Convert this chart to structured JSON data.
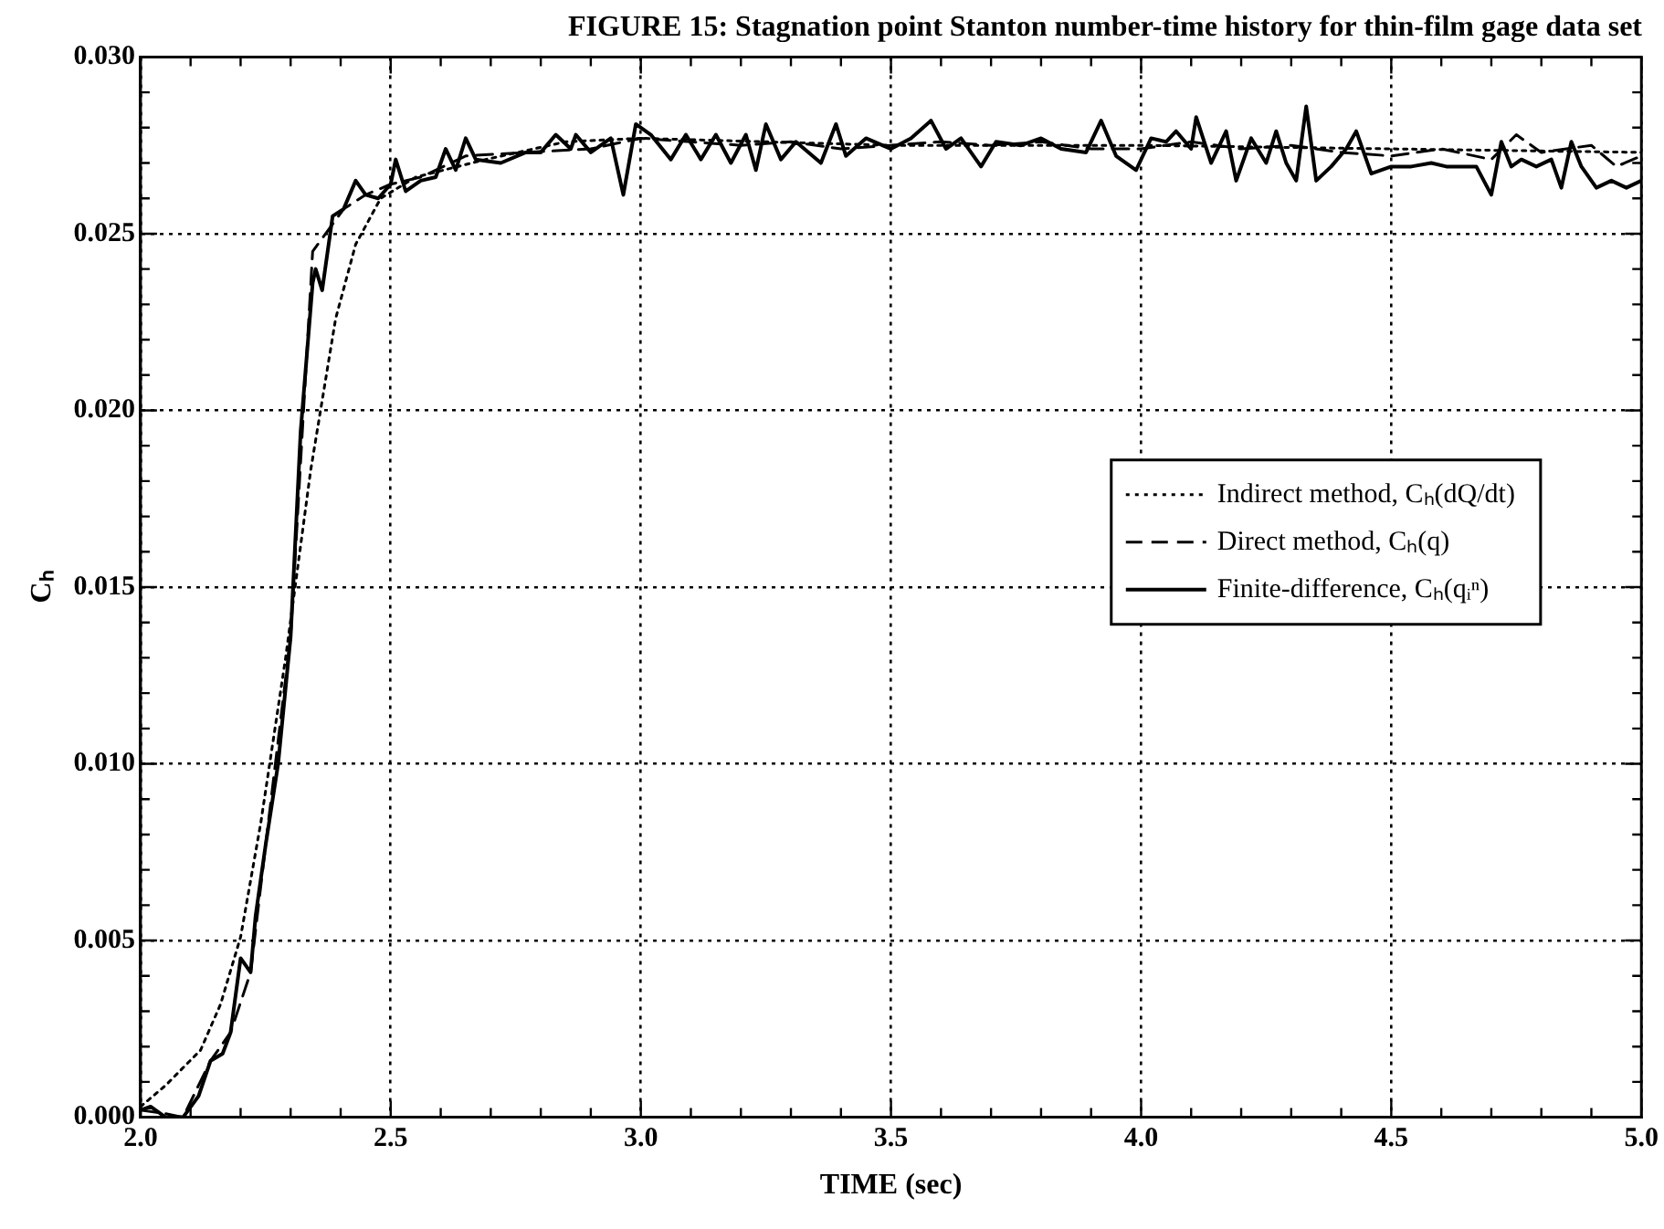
{
  "chart_data": {
    "type": "line",
    "title": "FIGURE 15: Stagnation point Stanton number-time history for thin-film gage data set",
    "xlabel": "TIME (sec)",
    "ylabel": "Cₕ",
    "xlim": [
      2.0,
      5.0
    ],
    "xticks": [
      {
        "value": 2.0,
        "label": "2.0"
      },
      {
        "value": 2.1,
        "label": null
      },
      {
        "value": 2.2,
        "label": null
      },
      {
        "value": 2.3,
        "label": null
      },
      {
        "value": 2.4,
        "label": null
      },
      {
        "value": 2.5,
        "label": "2.5"
      },
      {
        "value": 2.6,
        "label": null
      },
      {
        "value": 2.7,
        "label": null
      },
      {
        "value": 2.8,
        "label": null
      },
      {
        "value": 2.9,
        "label": null
      },
      {
        "value": 3.0,
        "label": "3.0"
      },
      {
        "value": 3.1,
        "label": null
      },
      {
        "value": 3.2,
        "label": null
      },
      {
        "value": 3.3,
        "label": null
      },
      {
        "value": 3.4,
        "label": null
      },
      {
        "value": 3.5,
        "label": "3.5"
      },
      {
        "value": 3.6,
        "label": null
      },
      {
        "value": 3.7,
        "label": null
      },
      {
        "value": 3.8,
        "label": null
      },
      {
        "value": 3.9,
        "label": null
      },
      {
        "value": 4.0,
        "label": "4.0"
      },
      {
        "value": 4.1,
        "label": null
      },
      {
        "value": 4.2,
        "label": null
      },
      {
        "value": 4.3,
        "label": null
      },
      {
        "value": 4.4,
        "label": null
      },
      {
        "value": 4.5,
        "label": "4.5"
      },
      {
        "value": 4.6,
        "label": null
      },
      {
        "value": 4.7,
        "label": null
      },
      {
        "value": 4.8,
        "label": null
      },
      {
        "value": 4.9,
        "label": null
      },
      {
        "value": 5.0,
        "label": "5.0"
      }
    ],
    "ylim": [
      0,
      0.03
    ],
    "yticks": [
      {
        "value": 0,
        "label": "0.000"
      },
      {
        "value": 0.001,
        "label": null
      },
      {
        "value": 0.002,
        "label": null
      },
      {
        "value": 0.003,
        "label": null
      },
      {
        "value": 0.004,
        "label": null
      },
      {
        "value": 0.005,
        "label": "0.005"
      },
      {
        "value": 0.006,
        "label": null
      },
      {
        "value": 0.007,
        "label": null
      },
      {
        "value": 0.008,
        "label": null
      },
      {
        "value": 0.009,
        "label": null
      },
      {
        "value": 0.01,
        "label": "0.010"
      },
      {
        "value": 0.011,
        "label": null
      },
      {
        "value": 0.012,
        "label": null
      },
      {
        "value": 0.013,
        "label": null
      },
      {
        "value": 0.014,
        "label": null
      },
      {
        "value": 0.015,
        "label": "0.015"
      },
      {
        "value": 0.016,
        "label": null
      },
      {
        "value": 0.017,
        "label": null
      },
      {
        "value": 0.018,
        "label": null
      },
      {
        "value": 0.019,
        "label": null
      },
      {
        "value": 0.02,
        "label": "0.020"
      },
      {
        "value": 0.021,
        "label": null
      },
      {
        "value": 0.022,
        "label": null
      },
      {
        "value": 0.023,
        "label": null
      },
      {
        "value": 0.024,
        "label": null
      },
      {
        "value": 0.025,
        "label": "0.025"
      },
      {
        "value": 0.026,
        "label": null
      },
      {
        "value": 0.027,
        "label": null
      },
      {
        "value": 0.028,
        "label": null
      },
      {
        "value": 0.029,
        "label": null
      },
      {
        "value": 0.03,
        "label": "0.030"
      }
    ],
    "grid": true,
    "legend": "right",
    "marker": "none",
    "series": [
      {
        "name": "Indirect method, Cₕ(dQ/dt)",
        "color": "#000000",
        "line_style": "dotted",
        "x": [
          2.0,
          2.05,
          2.12,
          2.16,
          2.2,
          2.24,
          2.29,
          2.34,
          2.39,
          2.43,
          2.48,
          2.55,
          2.69,
          2.85,
          3.0,
          3.5,
          4.0,
          4.5,
          5.0
        ],
        "values": [
          0.0003,
          0.0009,
          0.0019,
          0.0032,
          0.0051,
          0.0083,
          0.013,
          0.0183,
          0.0226,
          0.0247,
          0.026,
          0.0266,
          0.0271,
          0.0276,
          0.0277,
          0.0275,
          0.0275,
          0.0274,
          0.0273
        ]
      },
      {
        "name": "Direct method, Cₕ(q)",
        "color": "#000000",
        "line_style": "dashed",
        "x": [
          2.0,
          2.05,
          2.085,
          2.14,
          2.18,
          2.22,
          2.25,
          2.3,
          2.344,
          2.37,
          2.406,
          2.45,
          2.5,
          2.56,
          2.65,
          2.77,
          2.9,
          3.0,
          3.1,
          3.2,
          3.3,
          3.4,
          3.5,
          3.6,
          3.7,
          3.8,
          3.9,
          4.0,
          4.1,
          4.2,
          4.3,
          4.4,
          4.5,
          4.6,
          4.7,
          4.75,
          4.8,
          4.9,
          4.95,
          5.0
        ],
        "values": [
          0.0002,
          0.0001,
          0,
          0.0016,
          0.0024,
          0.0041,
          0.0077,
          0.0136,
          0.0245,
          0.025,
          0.0257,
          0.0261,
          0.0264,
          0.0266,
          0.0272,
          0.0273,
          0.0274,
          0.0277,
          0.0276,
          0.0275,
          0.0276,
          0.0274,
          0.0275,
          0.0276,
          0.0275,
          0.0276,
          0.0274,
          0.0274,
          0.0276,
          0.0274,
          0.0275,
          0.0273,
          0.0272,
          0.0274,
          0.0271,
          0.0278,
          0.0273,
          0.0275,
          0.0269,
          0.0272
        ]
      },
      {
        "name": "Finite-difference, Cₕ(qᵢⁿ)",
        "color": "#000000",
        "line_style": "solid",
        "x": [
          2.0,
          2.02,
          2.05,
          2.085,
          2.116,
          2.14,
          2.164,
          2.18,
          2.2,
          2.22,
          2.23,
          2.25,
          2.275,
          2.3,
          2.32,
          2.344,
          2.35,
          2.363,
          2.37,
          2.384,
          2.406,
          2.43,
          2.45,
          2.475,
          2.5,
          2.51,
          2.53,
          2.56,
          2.59,
          2.61,
          2.63,
          2.65,
          2.67,
          2.72,
          2.77,
          2.8,
          2.83,
          2.86,
          2.87,
          2.9,
          2.94,
          2.965,
          2.99,
          3.02,
          3.06,
          3.09,
          3.12,
          3.15,
          3.18,
          3.21,
          3.23,
          3.25,
          3.28,
          3.31,
          3.36,
          3.39,
          3.41,
          3.45,
          3.5,
          3.54,
          3.58,
          3.61,
          3.64,
          3.68,
          3.71,
          3.76,
          3.8,
          3.84,
          3.89,
          3.92,
          3.95,
          3.99,
          4.02,
          4.05,
          4.07,
          4.1,
          4.11,
          4.14,
          4.17,
          4.19,
          4.22,
          4.25,
          4.27,
          4.29,
          4.31,
          4.33,
          4.35,
          4.38,
          4.41,
          4.43,
          4.46,
          4.5,
          4.54,
          4.58,
          4.61,
          4.67,
          4.7,
          4.72,
          4.74,
          4.76,
          4.79,
          4.82,
          4.84,
          4.86,
          4.88,
          4.91,
          4.94,
          4.97,
          5.0
        ],
        "values": [
          0.0002,
          0.0003,
          0,
          0,
          0.0006,
          0.0016,
          0.0018,
          0.0024,
          0.0045,
          0.0041,
          0.0057,
          0.0077,
          0.01,
          0.0136,
          0.0194,
          0.0236,
          0.024,
          0.0234,
          0.0241,
          0.0255,
          0.0257,
          0.0265,
          0.0261,
          0.026,
          0.0264,
          0.0271,
          0.0262,
          0.0265,
          0.0266,
          0.0274,
          0.0268,
          0.0277,
          0.0271,
          0.027,
          0.0273,
          0.0273,
          0.0278,
          0.0274,
          0.0278,
          0.0273,
          0.0277,
          0.0261,
          0.0281,
          0.0278,
          0.0271,
          0.0278,
          0.0271,
          0.0278,
          0.027,
          0.0278,
          0.0268,
          0.0281,
          0.0271,
          0.0276,
          0.027,
          0.0281,
          0.0272,
          0.0277,
          0.0274,
          0.0277,
          0.0282,
          0.0274,
          0.0277,
          0.0269,
          0.0276,
          0.0275,
          0.0277,
          0.0274,
          0.0273,
          0.0282,
          0.0272,
          0.0268,
          0.0277,
          0.0276,
          0.0279,
          0.0274,
          0.0283,
          0.027,
          0.0279,
          0.0265,
          0.0277,
          0.027,
          0.0279,
          0.027,
          0.0265,
          0.0286,
          0.0265,
          0.0269,
          0.0274,
          0.0279,
          0.0267,
          0.0269,
          0.0269,
          0.027,
          0.0269,
          0.0269,
          0.0261,
          0.0276,
          0.0269,
          0.0271,
          0.0269,
          0.0271,
          0.0263,
          0.0276,
          0.0269,
          0.0263,
          0.0265,
          0.0263,
          0.0265
        ]
      }
    ]
  }
}
